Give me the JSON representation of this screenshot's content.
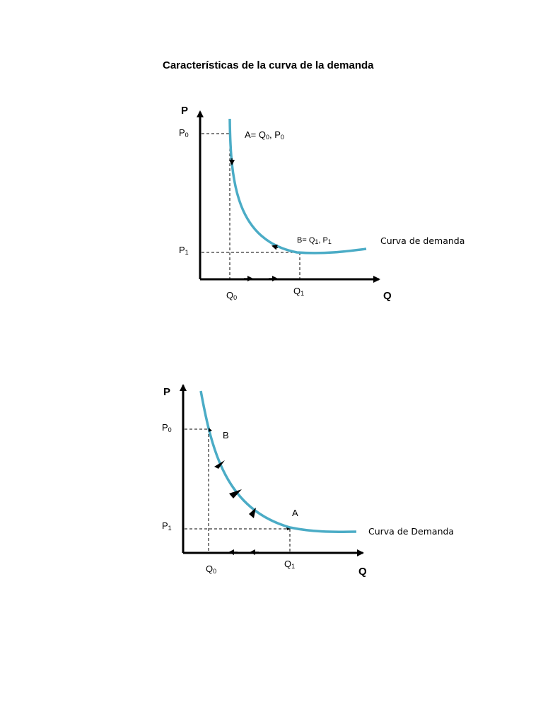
{
  "title": "Características de la curva de la demanda",
  "diagram1": {
    "y_axis": "P",
    "x_axis": "Q",
    "p0": {
      "base": "P",
      "sub": "0"
    },
    "p1": {
      "base": "P",
      "sub": "1"
    },
    "q0": {
      "base": "Q",
      "sub": "0"
    },
    "q1": {
      "base": "Q",
      "sub": "1"
    },
    "point_a": {
      "base1": "A= Q",
      "sub1": "0",
      "mid": ", P",
      "sub2": "0"
    },
    "point_b": {
      "base1": "B= Q",
      "sub1": "1",
      "mid": ", P",
      "sub2": "1"
    },
    "curve_label": "Curva de demanda",
    "curve_color": "#4bacc6"
  },
  "diagram2": {
    "y_axis": "P",
    "x_axis": "Q",
    "p0": {
      "base": "P",
      "sub": "0"
    },
    "p1": {
      "base": "P",
      "sub": "1"
    },
    "q0": {
      "base": "Q",
      "sub": "0"
    },
    "q1": {
      "base": "Q",
      "sub": "1"
    },
    "point_b": "B",
    "point_a": "A",
    "curve_label": "Curva de Demanda",
    "curve_color": "#4bacc6"
  }
}
